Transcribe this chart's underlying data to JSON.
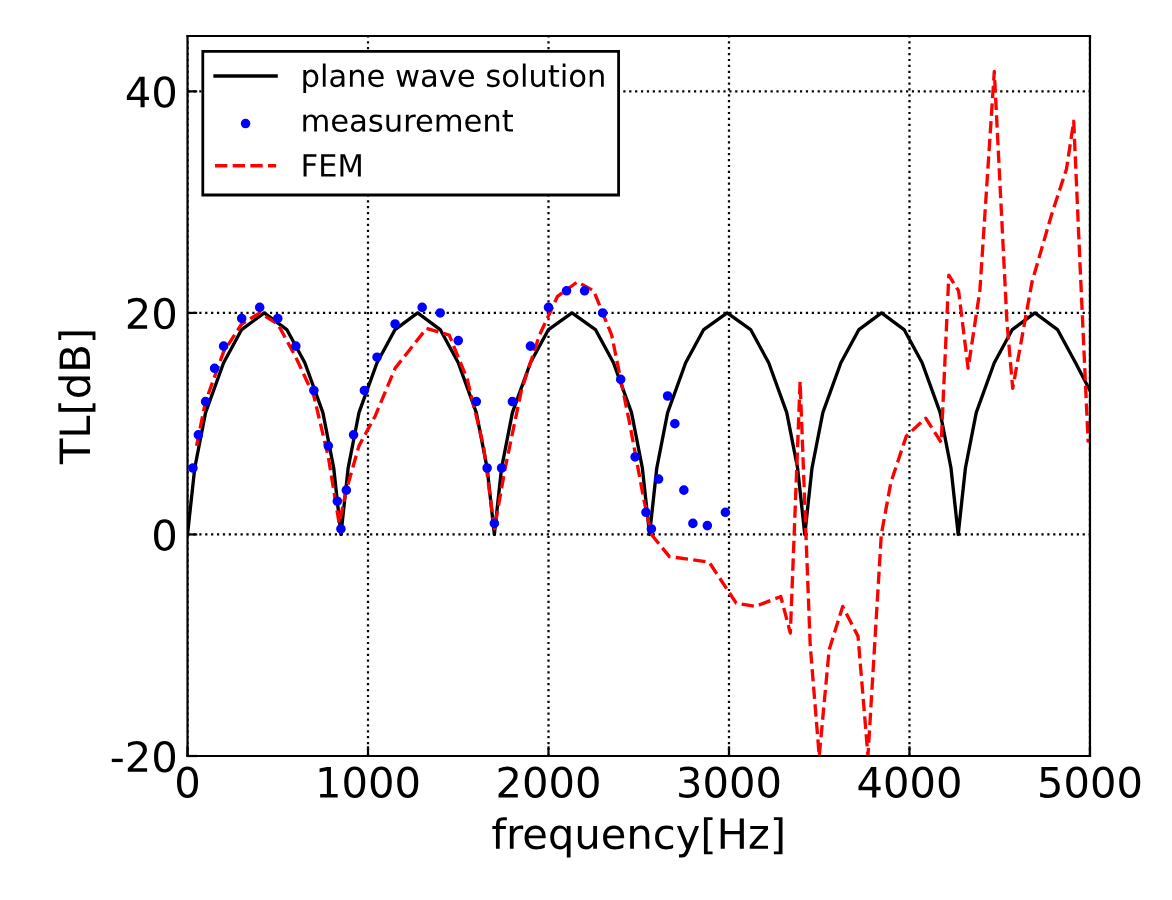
{
  "chart_data": {
    "type": "line",
    "xlabel": "frequency[Hz]",
    "ylabel": "TL[dB]",
    "xlim": [
      0,
      5000
    ],
    "ylim": [
      -20,
      45
    ],
    "xticks": [
      0,
      1000,
      2000,
      3000,
      4000,
      5000
    ],
    "yticks": [
      -20,
      0,
      20,
      40
    ],
    "grid": true,
    "legend": "top left",
    "series": [
      {
        "name": "plane wave solution",
        "color": "#000000",
        "line_style": "solid",
        "marker": "none",
        "x": [
          0,
          40,
          100,
          200,
          300,
          425,
          550,
          650,
          750,
          810,
          850,
          890,
          950,
          1050,
          1150,
          1275,
          1400,
          1500,
          1600,
          1660,
          1700,
          1740,
          1800,
          1900,
          2000,
          2130,
          2260,
          2360,
          2460,
          2520,
          2560,
          2600,
          2660,
          2760,
          2860,
          2990,
          3120,
          3220,
          3320,
          3380,
          3420,
          3460,
          3520,
          3620,
          3720,
          3845,
          3970,
          4070,
          4170,
          4230,
          4270,
          4310,
          4370,
          4470,
          4570,
          4695,
          4820,
          4920,
          5000
        ],
        "values": [
          0,
          6,
          11,
          15.5,
          18.5,
          20,
          18.5,
          15.5,
          11,
          6,
          0,
          6,
          11,
          15.5,
          18.5,
          20,
          18.5,
          15.5,
          11,
          6,
          0,
          6,
          11,
          15.5,
          18.5,
          20,
          18.5,
          15.5,
          11,
          6,
          0,
          6,
          11,
          15.5,
          18.5,
          20,
          18.5,
          15.5,
          11,
          6,
          0,
          6,
          11,
          15.5,
          18.5,
          20,
          18.5,
          15.5,
          11,
          6,
          0,
          6,
          11,
          15.5,
          18.5,
          20,
          18.5,
          15.5,
          13
        ]
      },
      {
        "name": "measurement",
        "type": "scatter",
        "color": "#0000ff",
        "marker": "circle",
        "x": [
          30,
          60,
          100,
          150,
          200,
          300,
          400,
          500,
          600,
          700,
          780,
          830,
          850,
          880,
          920,
          980,
          1050,
          1150,
          1300,
          1400,
          1500,
          1600,
          1660,
          1700,
          1740,
          1800,
          1900,
          2000,
          2100,
          2200,
          2300,
          2400,
          2480,
          2540,
          2570,
          2610,
          2660,
          2700,
          2750,
          2800,
          2880,
          2980
        ],
        "values": [
          6,
          9,
          12,
          15,
          17,
          19.5,
          20.5,
          19.5,
          17,
          13,
          8,
          3,
          0.5,
          4,
          9,
          13,
          16,
          19,
          20.5,
          20,
          17.5,
          12,
          6,
          1,
          6,
          12,
          17,
          20.5,
          22,
          22,
          20,
          14,
          7,
          2,
          0.5,
          5,
          12.5,
          10,
          4,
          1,
          0.8,
          2
        ]
      },
      {
        "name": "FEM",
        "color": "#ff0000",
        "line_style": "dashed",
        "marker": "none",
        "x": [
          50,
          100,
          200,
          300,
          400,
          500,
          600,
          700,
          780,
          840,
          880,
          950,
          1040,
          1150,
          1324,
          1450,
          1550,
          1640,
          1700,
          1760,
          1850,
          1950,
          2050,
          2160,
          2250,
          2350,
          2450,
          2530,
          2570,
          2670,
          2890,
          3040,
          3146,
          3287,
          3340,
          3394,
          3450,
          3500,
          3555,
          3630,
          3715,
          3770,
          3844,
          3897,
          3983,
          4090,
          4176,
          4218,
          4272,
          4325,
          4390,
          4470,
          4540,
          4572,
          4679,
          4786,
          4870,
          4910,
          4946,
          4990
        ],
        "values": [
          8,
          12,
          16.5,
          19,
          20,
          19,
          16,
          12.5,
          7,
          1,
          4,
          8,
          10.7,
          15,
          18.6,
          18,
          14,
          8,
          0.5,
          6,
          13,
          18,
          21.5,
          22.8,
          22,
          18,
          10,
          3,
          0,
          -2,
          -2.5,
          -6.2,
          -6.5,
          -5.6,
          -8.9,
          13.8,
          -10,
          -20,
          -10.4,
          -6.5,
          -9.2,
          -20,
          0,
          4.7,
          8.9,
          10.5,
          8.3,
          23.4,
          22,
          15,
          22,
          41.8,
          19.2,
          13.2,
          22.8,
          28.8,
          33,
          37.3,
          24,
          8.3
        ]
      }
    ]
  }
}
